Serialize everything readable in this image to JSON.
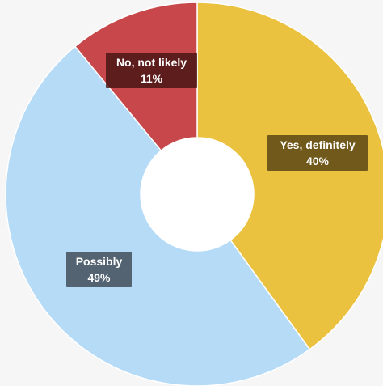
{
  "chart_data": {
    "type": "pie",
    "donut": true,
    "slices": [
      {
        "label": "Yes, definitely",
        "value": 40,
        "display": "40%",
        "color": "#ebc140"
      },
      {
        "label": "Possibly",
        "value": 49,
        "display": "49%",
        "color": "#b5dbf7"
      },
      {
        "label": "No, not likely",
        "value": 11,
        "display": "11%",
        "color": "#c7474a"
      }
    ],
    "start_angle_deg": 0,
    "direction": "clockwise",
    "legend": "none",
    "background": "#f6f6f6"
  }
}
